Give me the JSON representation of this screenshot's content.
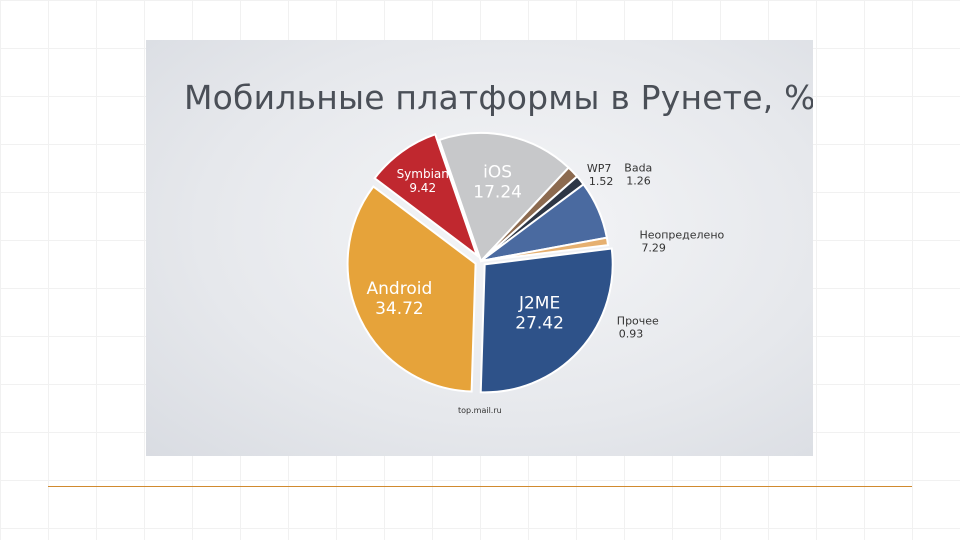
{
  "chart_data": {
    "type": "pie",
    "title": "Мобильные платформы в Рунете, %",
    "source": "top.mail.ru",
    "slices": [
      {
        "label": "iOS",
        "value_text": "17.24",
        "value": 17.24,
        "color": "#c7c8ca",
        "label_color": "#ffffff"
      },
      {
        "label": "WP7",
        "value_text": "1.52",
        "value": 1.52,
        "color": "#8c6a4f",
        "label_color": "#333333"
      },
      {
        "label": "Bada",
        "value_text": "1.26",
        "value": 1.26,
        "color": "#2d3645",
        "label_color": "#333333"
      },
      {
        "label": "Неопределено",
        "value_text": "7.29",
        "value": 7.29,
        "color": "#4a6aa0",
        "label_color": "#333333"
      },
      {
        "label": "Прочее",
        "value_text": "0.93",
        "value": 0.93,
        "color": "#e6b070",
        "label_color": "#333333"
      },
      {
        "label": "J2ME",
        "value_text": "27.42",
        "value": 27.42,
        "color": "#2e5289",
        "label_color": "#ffffff"
      },
      {
        "label": "Android",
        "value_text": "34.72",
        "value": 34.72,
        "color": "#e6a33a",
        "label_color": "#ffffff"
      },
      {
        "label": "Symbian",
        "value_text": "9.42",
        "value": 9.42,
        "color": "#c0282f",
        "label_color": "#ffffff"
      }
    ]
  }
}
